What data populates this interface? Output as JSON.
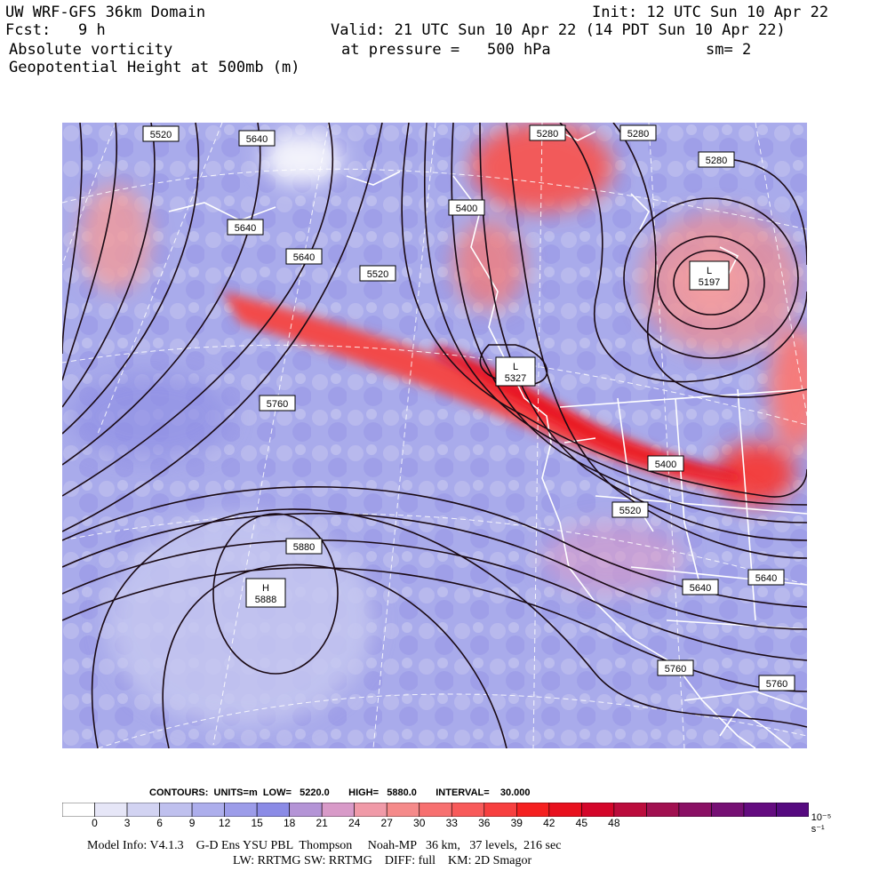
{
  "header": {
    "model_title": "UW WRF-GFS 36km Domain",
    "init": "Init: 12 UTC Sun 10 Apr 22",
    "fcst_label": "Fcst:",
    "fcst_value": "9 h",
    "valid": "Valid: 21 UTC Sun 10 Apr 22 (14 PDT Sun 10 Apr 22)",
    "field1": "Absolute vorticity",
    "pressure_label": "at pressure =",
    "pressure_value": "500 hPa",
    "smoothing": "sm= 2",
    "field2": "Geopotential Height at 500mb (m)"
  },
  "contour_labels": [
    {
      "text": "5520"
    },
    {
      "text": "5640"
    },
    {
      "text": "5280"
    },
    {
      "text": "5280"
    },
    {
      "text": "5280"
    },
    {
      "text": "5400"
    },
    {
      "text": "5640"
    },
    {
      "text": "5640"
    },
    {
      "text": "5520"
    },
    {
      "text": "5760"
    },
    {
      "text": "5400"
    },
    {
      "text": "5520"
    },
    {
      "text": "5880"
    },
    {
      "text": "5640"
    },
    {
      "text": "5640"
    },
    {
      "text": "5760"
    },
    {
      "text": "5760"
    }
  ],
  "centers": [
    {
      "letter": "L",
      "value": "5197"
    },
    {
      "letter": "L",
      "value": "5327"
    },
    {
      "letter": "H",
      "value": "5888"
    }
  ],
  "footer": {
    "contours_line": "CONTOURS:  UNITS=m  LOW=   5220.0       HIGH=   5880.0       INTERVAL=    30.000",
    "model_info": "Model Info: V4.1.3    G-D Ens YSU PBL  Thompson     Noah-MP   36 km,   37 levels,  216 sec",
    "physics": "LW: RRTMG SW: RRTMG    DIFF: full    KM: 2D Smagor"
  },
  "colorbar": {
    "ticks": [
      "0",
      "3",
      "6",
      "9",
      "12",
      "15",
      "18",
      "21",
      "24",
      "27",
      "30",
      "33",
      "36",
      "39",
      "42",
      "45",
      "48"
    ],
    "unit": "10⁻⁵ s⁻¹",
    "colors": [
      "#ffffff",
      "#e6e6f7",
      "#d2d3f2",
      "#bfc0ee",
      "#adaeec",
      "#9c9ce9",
      "#8b8be6",
      "#b494d6",
      "#d89ac8",
      "#f09aa8",
      "#f58a8a",
      "#f77070",
      "#f85a5a",
      "#f73f3f",
      "#f52020",
      "#e8101e",
      "#d4062a",
      "#bb0c3c",
      "#a11050",
      "#8a1064",
      "#761074",
      "#640c80",
      "#560a80"
    ]
  }
}
